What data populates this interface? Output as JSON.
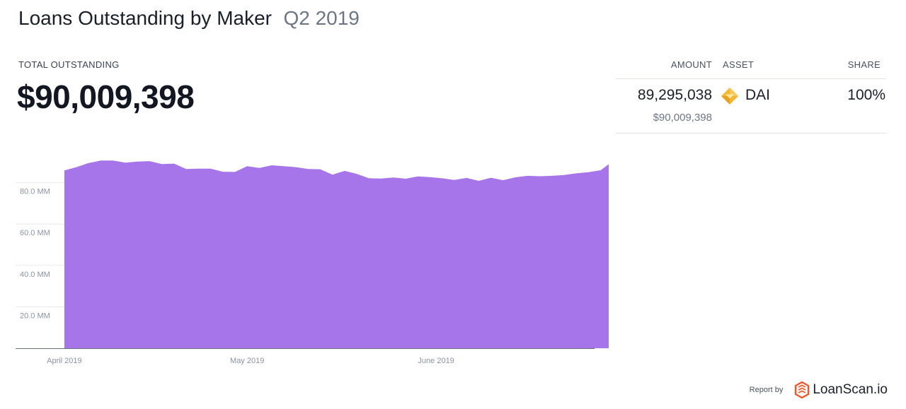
{
  "header": {
    "title": "Loans Outstanding by Maker",
    "period": "Q2 2019"
  },
  "total": {
    "label": "TOTAL OUTSTANDING",
    "value": "$90,009,398"
  },
  "table": {
    "columns": {
      "amount": "AMOUNT",
      "asset": "ASSET",
      "share": "SHARE"
    },
    "rows": [
      {
        "amount": "89,295,038",
        "amount_usd": "$90,009,398",
        "asset": "DAI",
        "asset_icon": "dai-diamond-icon",
        "share": "100%"
      }
    ]
  },
  "footer": {
    "report_by": "Report by",
    "brand": "LoanScan.io",
    "brand_icon": "loanscan-logo-icon"
  },
  "chart_data": {
    "type": "area",
    "title": "",
    "xlabel": "",
    "ylabel": "",
    "color": "#a775ea",
    "axis_color": "#6b7280",
    "grid_color": "#e8eaee",
    "ylim": [
      0,
      100
    ],
    "y_unit": "MM",
    "y_ticks": [
      {
        "value": 20,
        "label": "20.0 MM"
      },
      {
        "value": 40,
        "label": "40.0 MM"
      },
      {
        "value": 60,
        "label": "60.0 MM"
      },
      {
        "value": 80,
        "label": "80.0 MM"
      }
    ],
    "x_range": [
      "2019-03-24",
      "2019-06-27"
    ],
    "x_ticks": [
      {
        "date": "2019-04-01",
        "label": "April 2019"
      },
      {
        "date": "2019-05-01",
        "label": "May 2019"
      },
      {
        "date": "2019-06-01",
        "label": "June 2019"
      }
    ],
    "series": [
      {
        "x": [
          "2019-04-01",
          "2019-04-03",
          "2019-04-05",
          "2019-04-07",
          "2019-04-09",
          "2019-04-11",
          "2019-04-13",
          "2019-04-15",
          "2019-04-17",
          "2019-04-19",
          "2019-04-21",
          "2019-04-23",
          "2019-04-25",
          "2019-04-27",
          "2019-04-29",
          "2019-05-01",
          "2019-05-03",
          "2019-05-05",
          "2019-05-07",
          "2019-05-09",
          "2019-05-11",
          "2019-05-13",
          "2019-05-15",
          "2019-05-17",
          "2019-05-19",
          "2019-05-21",
          "2019-05-23",
          "2019-05-25",
          "2019-05-27",
          "2019-05-29",
          "2019-05-31",
          "2019-06-02",
          "2019-06-04",
          "2019-06-06",
          "2019-06-08",
          "2019-06-10",
          "2019-06-12",
          "2019-06-14",
          "2019-06-16",
          "2019-06-18",
          "2019-06-20",
          "2019-06-22",
          "2019-06-24",
          "2019-06-26",
          "2019-06-28",
          "2019-06-30"
        ],
        "y": [
          85.9,
          87.5,
          89.5,
          90.7,
          90.7,
          89.7,
          90.2,
          90.4,
          89.0,
          89.2,
          86.6,
          86.8,
          86.8,
          85.3,
          85.2,
          88.0,
          87.1,
          88.4,
          88.0,
          87.5,
          86.6,
          86.5,
          83.9,
          85.7,
          84.2,
          82.1,
          82.0,
          82.5,
          81.9,
          83.0,
          82.7,
          82.1,
          81.3,
          82.3,
          80.9,
          82.4,
          81.2,
          82.6,
          83.3,
          83.1,
          83.3,
          83.7,
          84.5,
          85.1,
          86.0,
          90.4
        ]
      }
    ]
  }
}
